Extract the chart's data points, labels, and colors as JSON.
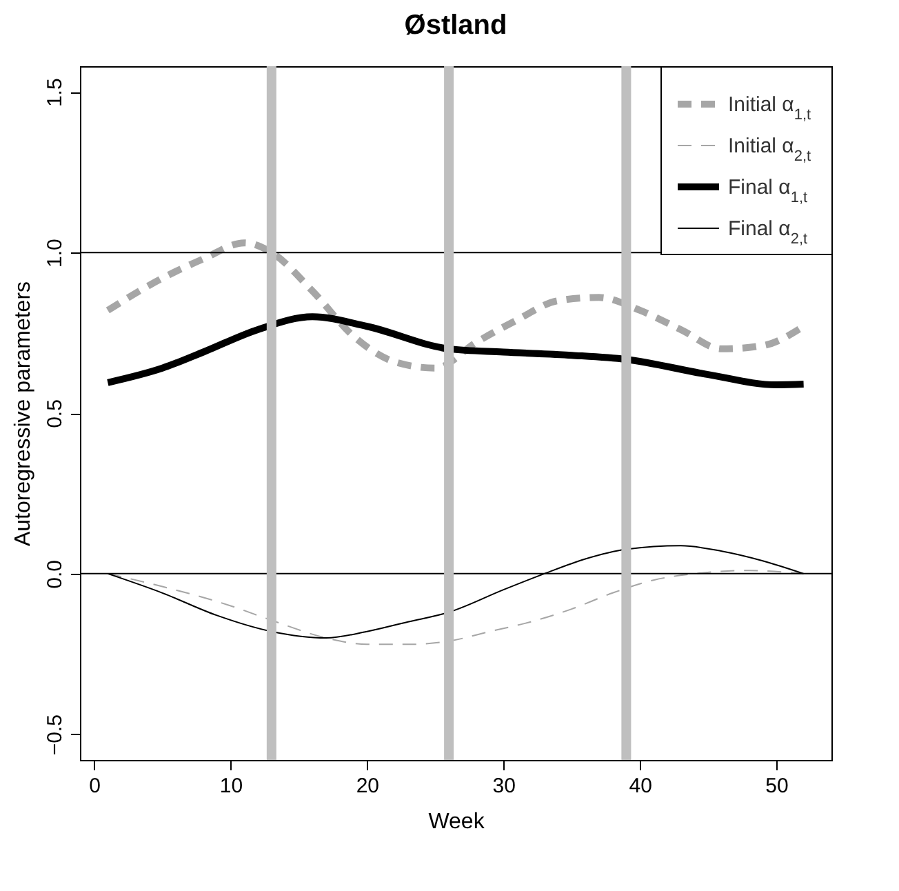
{
  "chart_data": {
    "type": "line",
    "title": "Østland",
    "xlabel": "Week",
    "ylabel": "Autoregressive parameters",
    "xlim": [
      -1.04,
      54.04
    ],
    "ylim": [
      -0.58,
      1.58
    ],
    "xticks": [
      0,
      10,
      20,
      30,
      40,
      50
    ],
    "yticks": [
      -0.5,
      {
        "value": 0,
        "label": "0.0"
      },
      0.5,
      {
        "value": 1,
        "label": "1.0"
      },
      1.5
    ],
    "grid": false,
    "legend": "top right",
    "marker": "none",
    "series": [
      {
        "name": "Initial α$_{1,t}$",
        "color": "#a6a6a6",
        "line_style": "dashed",
        "x": [
          1,
          5,
          8,
          11,
          13,
          16,
          19,
          22,
          25,
          28,
          31,
          34,
          37,
          40,
          43,
          46,
          49,
          52
        ],
        "values": [
          0.82,
          0.92,
          0.98,
          1.03,
          1.0,
          0.88,
          0.74,
          0.66,
          0.64,
          0.72,
          0.79,
          0.85,
          0.86,
          0.82,
          0.76,
          0.7,
          0.71,
          0.77
        ]
      },
      {
        "name": "Initial α$_{2,t}$",
        "color": "#a6a6a6",
        "line_style": "dashed",
        "x": [
          1,
          5,
          10,
          13,
          17,
          20,
          23,
          26,
          29,
          32,
          35,
          38,
          41,
          44,
          48,
          52
        ],
        "values": [
          0,
          -0.04,
          -0.1,
          -0.145,
          -0.2,
          -0.22,
          -0.22,
          -0.21,
          -0.18,
          -0.15,
          -0.11,
          -0.06,
          -0.02,
          0,
          0.01,
          0
        ]
      },
      {
        "name": "Final α$_{1,t}$",
        "color": "#000000",
        "line_style": "solid",
        "x": [
          1,
          5,
          8,
          12,
          16,
          20,
          26,
          30,
          35,
          39,
          45,
          50,
          52
        ],
        "values": [
          0.595,
          0.64,
          0.69,
          0.76,
          0.8,
          0.77,
          0.7,
          0.69,
          0.68,
          0.667,
          0.62,
          0.588,
          0.59
        ]
      },
      {
        "name": "Final α$_{2,t}$",
        "color": "#000000",
        "line_style": "solid",
        "x": [
          1,
          5,
          9,
          13,
          17,
          20,
          23,
          26,
          30,
          33,
          36,
          39,
          43,
          46,
          49,
          52
        ],
        "values": [
          0,
          -0.06,
          -0.13,
          -0.18,
          -0.2,
          -0.18,
          -0.15,
          -0.12,
          -0.05,
          0,
          0.046,
          0.076,
          0.087,
          0.07,
          0.04,
          0
        ]
      }
    ],
    "ref_lines": [
      {
        "axis": "y",
        "value": 0,
        "color": "#000000"
      },
      {
        "axis": "y",
        "value": 1,
        "color": "#000000"
      },
      {
        "axis": "x",
        "value": 13,
        "color": "#bfbfbf"
      },
      {
        "axis": "x",
        "value": 26,
        "color": "#bfbfbf"
      },
      {
        "axis": "x",
        "value": 39,
        "color": "#bfbfbf"
      }
    ]
  }
}
